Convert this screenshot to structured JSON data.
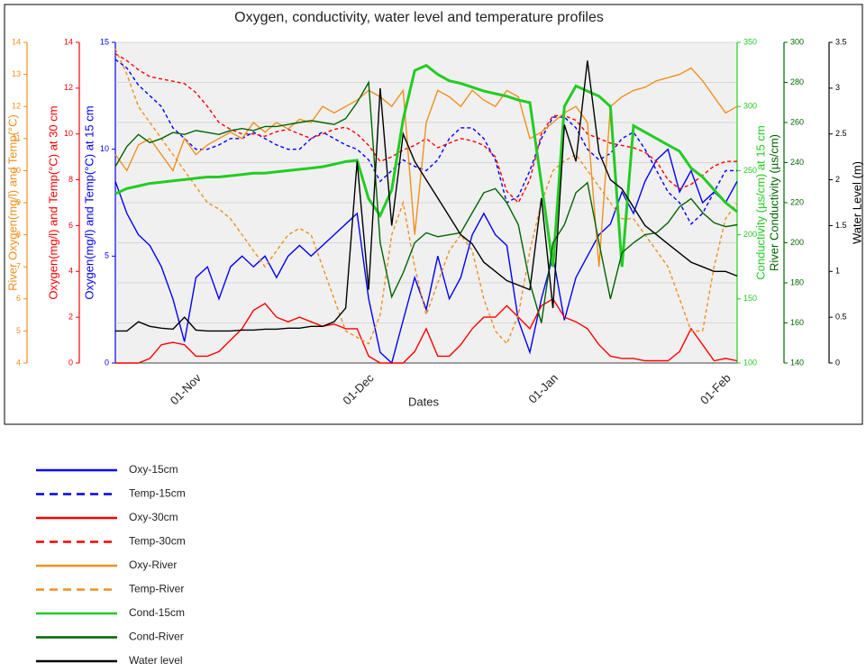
{
  "chart_data": {
    "type": "line",
    "title": "Oxygen, conductivity, water level and temperature profiles",
    "x_label": "Dates",
    "categories": [
      null,
      null,
      null,
      null,
      null,
      null,
      null,
      "01-Nov",
      null,
      null,
      null,
      null,
      null,
      null,
      null,
      null,
      null,
      null,
      null,
      null,
      null,
      null,
      "01-Dec",
      null,
      null,
      null,
      null,
      null,
      null,
      null,
      null,
      null,
      null,
      null,
      null,
      null,
      null,
      null,
      "01-Jan",
      null,
      null,
      null,
      null,
      null,
      null,
      null,
      null,
      null,
      null,
      null,
      null,
      null,
      null,
      "01-Feb",
      null
    ],
    "grid": true,
    "axes": [
      {
        "label": "Oxygen(mg/l) and Temp(°C) at 15 cm",
        "color": "#0000ff",
        "side": "left",
        "ylim": [
          0,
          15
        ],
        "yticks": [
          0,
          5,
          10,
          15
        ],
        "series": [
          {
            "name": "Oxy-15cm",
            "color": "#0000ff",
            "style": "solid",
            "values": [
              8.5,
              7,
              6,
              5.5,
              4.5,
              3,
              1,
              4,
              4.5,
              3,
              4.5,
              5,
              4.5,
              5,
              4,
              5,
              5.5,
              5,
              5.5,
              6,
              6.5,
              7,
              3,
              0.5,
              0,
              2,
              4,
              2.5,
              5,
              3,
              4,
              6,
              7,
              6,
              5.5,
              2,
              0.5,
              3,
              5,
              2,
              4,
              5,
              6,
              6.5,
              8,
              7,
              8.5,
              9.5,
              10,
              8,
              9,
              7.5,
              8,
              7.5,
              8.5
            ]
          },
          {
            "name": "Temp-15cm",
            "color": "#0000ff",
            "style": "dashed",
            "values": [
              14.2,
              13.8,
              13,
              12.5,
              12,
              11,
              10.5,
              10,
              10,
              10.2,
              10.5,
              10.5,
              10.8,
              10.5,
              10.2,
              10,
              10,
              10.5,
              10.8,
              10.5,
              10.2,
              10,
              9.5,
              8.5,
              9,
              9.5,
              9.2,
              9,
              9.5,
              10.5,
              11,
              11,
              10.5,
              9.5,
              7.5,
              7.8,
              9,
              10.5,
              11.5,
              11.5,
              11,
              10,
              9.5,
              9.8,
              10.5,
              10.8,
              10,
              9,
              8,
              7.5,
              6.5,
              7,
              8,
              9,
              9
            ]
          }
        ]
      },
      {
        "label": "Oxygen(mg/l) and Temp(°C) at 30 cm",
        "color": "#ff0000",
        "side": "left",
        "ylim": [
          0,
          14
        ],
        "yticks": [
          0,
          2,
          4,
          6,
          8,
          10,
          12,
          14
        ],
        "series": [
          {
            "name": "Oxy-30cm",
            "color": "#ff0000",
            "style": "solid",
            "values": [
              0,
              0,
              0,
              0.2,
              0.8,
              0.9,
              0.8,
              0.3,
              0.3,
              0.5,
              1,
              1.5,
              2.3,
              2.6,
              2,
              1.8,
              2,
              1.8,
              1.6,
              1.7,
              1.5,
              1.5,
              0.3,
              0,
              0,
              0,
              0.5,
              1.5,
              0.3,
              0.3,
              0.8,
              1.5,
              2,
              2,
              2.5,
              2,
              1.5,
              2.5,
              2.8,
              2,
              1.8,
              1.5,
              0.8,
              0.3,
              0.2,
              0.2,
              0.1,
              0.1,
              0.1,
              0.5,
              1.5,
              0.8,
              0.1,
              0.2,
              0.1
            ]
          },
          {
            "name": "Temp-30cm",
            "color": "#ff0000",
            "style": "dashed",
            "values": [
              13.5,
              13.2,
              12.8,
              12.5,
              12.4,
              12.3,
              12.2,
              11.8,
              11.2,
              10.5,
              10.2,
              10,
              10,
              9.9,
              10.1,
              10.2,
              10,
              9.8,
              10,
              10.2,
              10.3,
              10,
              9.5,
              8.8,
              9,
              9.3,
              9.5,
              9.8,
              9.4,
              9.6,
              9.8,
              9.7,
              9.5,
              9,
              7.5,
              7,
              8,
              10,
              10.8,
              10.8,
              10.6,
              10,
              9.8,
              9.6,
              9.5,
              9.4,
              9.2,
              8.8,
              8,
              7.6,
              7.8,
              8.2,
              8.6,
              8.8,
              8.8
            ]
          }
        ]
      },
      {
        "label": "River Oxygen(mg/l) and Temp(°C)",
        "color": "#f0901e",
        "side": "left",
        "ylim": [
          4,
          14
        ],
        "yticks": [
          4,
          5,
          6,
          7,
          8,
          9,
          10,
          11,
          12,
          13,
          14
        ],
        "series": [
          {
            "name": "Oxy-River",
            "color": "#f0901e",
            "style": "solid",
            "values": [
              10.5,
              10,
              10.8,
              11,
              10.5,
              10,
              11,
              10.5,
              10.8,
              11,
              11.2,
              11,
              11.5,
              11.2,
              11.5,
              11.3,
              11.6,
              11.5,
              12,
              11.8,
              12,
              12.2,
              12.5,
              12.3,
              12,
              12.5,
              8,
              11.5,
              12.5,
              12.3,
              12,
              12.5,
              12.2,
              12,
              12.5,
              12.3,
              11,
              11.2,
              11.5,
              11.8,
              12,
              11.5,
              7,
              12,
              12.3,
              12.5,
              12.6,
              12.8,
              12.9,
              13,
              13.2,
              12.8,
              12.3,
              11.8,
              12
            ]
          },
          {
            "name": "Temp-River",
            "color": "#f0901e",
            "style": "dashed",
            "values": [
              13.8,
              13,
              12,
              11.5,
              11,
              10.5,
              10,
              9.5,
              9,
              8.8,
              8.5,
              8,
              7.5,
              7,
              7.5,
              8,
              8.2,
              8,
              7,
              6,
              5,
              4.8,
              4.6,
              5.5,
              8,
              9,
              7,
              5.5,
              6.5,
              7.5,
              8,
              7.5,
              6,
              5,
              4.6,
              5.5,
              7.5,
              9,
              10,
              10.3,
              10.5,
              10,
              9.5,
              9,
              8.5,
              8.5,
              8,
              7.5,
              7,
              6,
              5,
              5,
              7,
              8.5,
              9
            ]
          }
        ]
      },
      {
        "label": "Conductivity (µs/cm) at 15 cm",
        "color": "#22cc22",
        "side": "right",
        "ylim": [
          100,
          350
        ],
        "yticks": [
          100,
          150,
          200,
          250,
          300,
          350
        ],
        "series": [
          {
            "name": "Cond-15cm",
            "color": "#22cc22",
            "style": "solid",
            "values": [
              232,
              236,
              238,
              240,
              241,
              242,
              243,
              244,
              245,
              245,
              246,
              247,
              248,
              248,
              249,
              250,
              251,
              252,
              253,
              255,
              257,
              258,
              228,
              215,
              235,
              290,
              328,
              332,
              325,
              320,
              318,
              315,
              312,
              310,
              308,
              305,
              303,
              240,
              175,
              300,
              316,
              312,
              308,
              300,
              175,
              285,
              280,
              275,
              270,
              265,
              252,
              245,
              235,
              225,
              218
            ]
          }
        ]
      },
      {
        "label": "River Conductivity (µs/cm)",
        "color": "#006400",
        "side": "right",
        "ylim": [
          140,
          300
        ],
        "yticks": [
          140,
          160,
          180,
          200,
          220,
          240,
          260,
          280,
          300
        ],
        "series": [
          {
            "name": "Cond-River",
            "color": "#006400",
            "style": "solid",
            "values": [
              238,
              248,
              254,
              250,
              252,
              255,
              254,
              256,
              255,
              254,
              256,
              257,
              256,
              258,
              258,
              259,
              260,
              261,
              260,
              259,
              262,
              270,
              280,
              200,
              173,
              185,
              200,
              205,
              203,
              204,
              205,
              215,
              225,
              227,
              220,
              209,
              180,
              160,
              200,
              209,
              225,
              230,
              200,
              172,
              195,
              200,
              204,
              205,
              210,
              218,
              222,
              215,
              210,
              208,
              209
            ]
          }
        ]
      },
      {
        "label": "Water Level (m)",
        "color": "#000000",
        "side": "right",
        "ylim": [
          0,
          3.5
        ],
        "yticks": [
          0,
          0.5,
          1,
          1.5,
          2,
          2.5,
          3,
          3.5
        ],
        "series": [
          {
            "name": "Water level",
            "color": "#000000",
            "style": "solid",
            "values": [
              0.35,
              0.35,
              0.45,
              0.4,
              0.38,
              0.37,
              0.5,
              0.36,
              0.35,
              0.35,
              0.35,
              0.36,
              0.36,
              0.37,
              0.37,
              0.38,
              0.38,
              0.4,
              0.4,
              0.45,
              0.6,
              2.2,
              0.8,
              3.0,
              1.5,
              2.5,
              2.2,
              2,
              1.8,
              1.6,
              1.4,
              1.3,
              1.1,
              1,
              0.9,
              0.85,
              0.8,
              1.8,
              0.6,
              2.6,
              2.2,
              3.3,
              2.3,
              2.0,
              1.9,
              1.7,
              1.5,
              1.4,
              1.3,
              1.2,
              1.1,
              1.05,
              1.0,
              1.0,
              0.95
            ]
          }
        ]
      }
    ]
  }
}
